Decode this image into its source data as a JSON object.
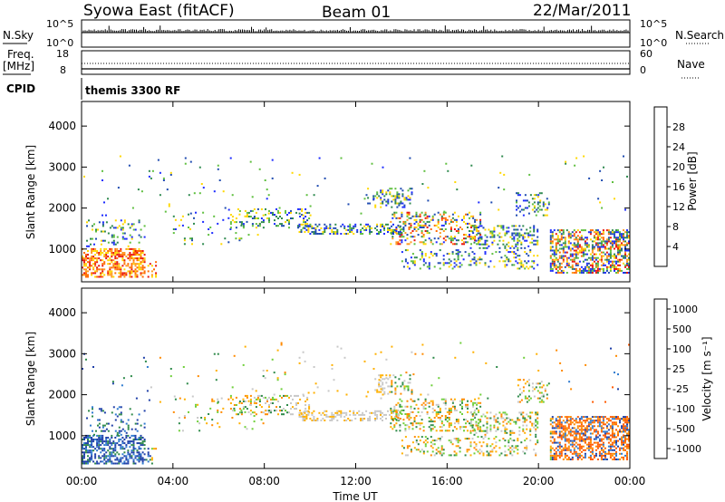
{
  "header": {
    "station": "Syowa East (fitACF)",
    "beam": "Beam 01",
    "date": "22/Mar/2011"
  },
  "summary_panels": {
    "nsky_label": "N.Sky",
    "nsky_ticks": [
      "10^5",
      "10^0"
    ],
    "nsearch_label": "N.Search",
    "nsearch_ticks": [
      "10^5",
      "10^0"
    ],
    "freq_label_1": "Freq.",
    "freq_label_2": "[MHz]",
    "freq_ticks": [
      "18",
      "8"
    ],
    "nave_label": "Nave",
    "nave_ticks": [
      "60",
      "0"
    ],
    "cpid_label": "CPID",
    "cpid_value": "themis 3300 RF"
  },
  "chart_data": [
    {
      "type": "heatmap",
      "name": "power",
      "ylabel": "Slant Range [km]",
      "xlabel": "",
      "x_ticks": [
        "00:00",
        "04:00",
        "08:00",
        "12:00",
        "16:00",
        "20:00",
        "00:00"
      ],
      "y_ticks": [
        "1000",
        "2000",
        "3000",
        "4000"
      ],
      "ylim": [
        200,
        4600
      ],
      "colorbar_label": "Power [dB]",
      "colorbar_ticks": [
        "4",
        "8",
        "12",
        "16",
        "20",
        "24",
        "28"
      ],
      "colorbar_colors": [
        "#1c2bff",
        "#1f4bb0",
        "#2f8a4f",
        "#5fbf3f",
        "#ffd800",
        "#ff9a1f",
        "#ff6a00",
        "#e8150c"
      ]
    },
    {
      "type": "heatmap",
      "name": "velocity",
      "ylabel": "Slant Range [km]",
      "xlabel": "Time UT",
      "x_ticks": [
        "00:00",
        "04:00",
        "08:00",
        "12:00",
        "16:00",
        "20:00",
        "00:00"
      ],
      "y_ticks": [
        "1000",
        "2000",
        "3000",
        "4000"
      ],
      "ylim": [
        200,
        4600
      ],
      "colorbar_label": "Velocity [m s⁻¹]",
      "colorbar_ticks": [
        "1000",
        "500",
        "100",
        "25",
        "-25",
        "-100",
        "-500",
        "-1000"
      ],
      "colorbar_colors": [
        "#1f3fa8",
        "#2f7bd0",
        "#2e8a4a",
        "#6fcf3a",
        "#c8c8c8",
        "#ffb000",
        "#ff8a00",
        "#ff5a00",
        "#e8150c"
      ]
    }
  ]
}
